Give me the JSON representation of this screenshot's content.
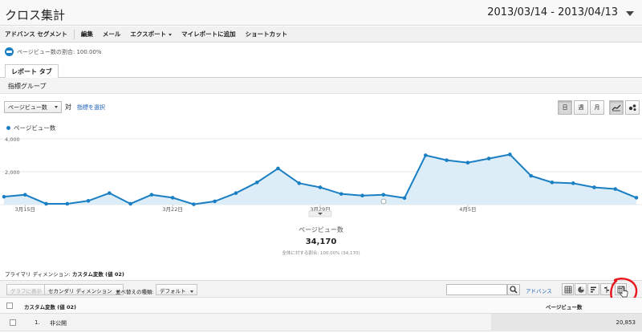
{
  "header": {
    "title": "クロス集計",
    "date_range": "2013/03/14 - 2013/04/13"
  },
  "toolbar": {
    "items": [
      "アドバンス セグメント",
      "編集",
      "メール",
      "エクスポート",
      "マイレポートに追加",
      "ショートカット"
    ]
  },
  "segment": {
    "label": "ページビュー数の割合: 100.00%"
  },
  "tabs": {
    "report_tab": "レポート タブ",
    "metric_group": "指標グループ"
  },
  "chart_controls": {
    "metric": "ページビュー数",
    "vs": "対",
    "select_metric": "指標を選択",
    "periods": [
      "日",
      "週",
      "月"
    ],
    "active_period": "日"
  },
  "chart_data": {
    "type": "area",
    "series": [
      {
        "name": "ページビュー数",
        "color": "#1b7fc4",
        "values": [
          480,
          600,
          50,
          50,
          230,
          700,
          50,
          600,
          420,
          20,
          200,
          700,
          1350,
          2200,
          1300,
          1050,
          650,
          550,
          600,
          400,
          3000,
          2700,
          2550,
          2800,
          3050,
          1750,
          1350,
          1300,
          1050,
          950,
          420
        ]
      }
    ],
    "x_tick_labels": [
      "3月15日",
      "3月22日",
      "3月29日",
      "4月5日"
    ],
    "y_tick_labels": [
      "4,000",
      "2,000"
    ],
    "ylim": [
      0,
      4000
    ],
    "grid": true
  },
  "summary": {
    "label": "ページビュー数",
    "value": "34,170",
    "sub": "全体に対する割合: 100.00% (34,170)"
  },
  "primary_dimension": {
    "label": "プライマリ ディメンション:",
    "value": "カスタム変数 (値 02)"
  },
  "table_toolbar": {
    "graph_rows": "グラフに表示",
    "secondary_dimension": "セカンダリ ディメンション",
    "sort_type_label": "並べ替えの種類:",
    "sort_type_value": "デフォルト",
    "search_placeholder": "",
    "advanced": "アドバンス"
  },
  "table": {
    "dim_header": "カスタム変数 (値 02)",
    "metric_header": "ページビュー数",
    "rows": [
      {
        "index": "1.",
        "label": "非公開",
        "value": "20,853"
      }
    ]
  },
  "colors": {
    "accent": "#1b7fc4",
    "annotation": "#e8161c"
  }
}
